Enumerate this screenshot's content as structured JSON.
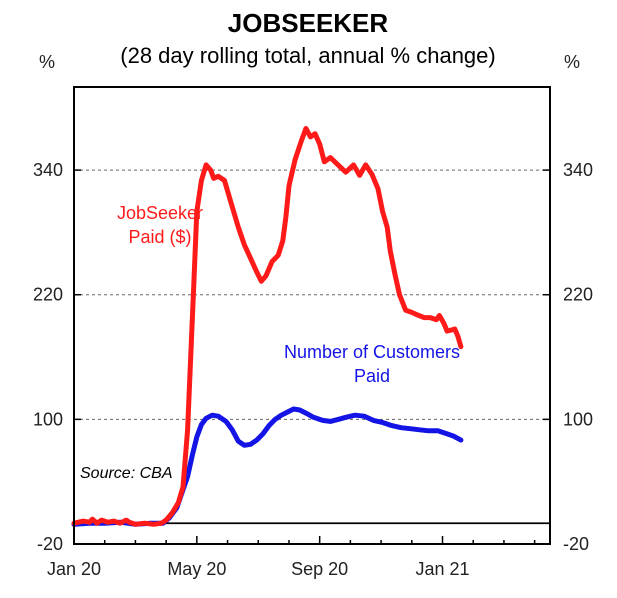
{
  "chart_data": {
    "type": "line",
    "title": "JOBSEEKER",
    "subtitle": "(28 day rolling total, annual % change)",
    "ylabel_left": "%",
    "ylabel_right": "%",
    "ylim": [
      -20,
      420
    ],
    "yticks": [
      -20,
      100,
      220,
      340
    ],
    "xlim": [
      0,
      15.5
    ],
    "xticks": [
      {
        "x": 0,
        "label": "Jan 20"
      },
      {
        "x": 4,
        "label": "May 20"
      },
      {
        "x": 8,
        "label": "Sep 20"
      },
      {
        "x": 12,
        "label": "Jan 21"
      }
    ],
    "gridlines": [
      100,
      220,
      340
    ],
    "source": "Source: CBA",
    "series": [
      {
        "name": "JobSeeker Paid ($)",
        "label_lines": [
          "JobSeeker",
          "Paid ($)"
        ],
        "color": "#ff1a1a",
        "points": [
          [
            0,
            0
          ],
          [
            0.3,
            2
          ],
          [
            0.5,
            1
          ],
          [
            0.6,
            4
          ],
          [
            0.75,
            0
          ],
          [
            0.9,
            3
          ],
          [
            1.1,
            1
          ],
          [
            1.3,
            2
          ],
          [
            1.5,
            0
          ],
          [
            1.7,
            3
          ],
          [
            1.8,
            1
          ],
          [
            2.0,
            -1
          ],
          [
            2.3,
            0
          ],
          [
            2.6,
            -1
          ],
          [
            2.85,
            0
          ],
          [
            3.0,
            3
          ],
          [
            3.2,
            10
          ],
          [
            3.4,
            20
          ],
          [
            3.55,
            35
          ],
          [
            3.7,
            90
          ],
          [
            3.8,
            160
          ],
          [
            3.9,
            230
          ],
          [
            4.0,
            300
          ],
          [
            4.15,
            330
          ],
          [
            4.3,
            345
          ],
          [
            4.45,
            340
          ],
          [
            4.55,
            332
          ],
          [
            4.7,
            334
          ],
          [
            4.9,
            330
          ],
          [
            5.1,
            310
          ],
          [
            5.35,
            285
          ],
          [
            5.55,
            268
          ],
          [
            5.75,
            255
          ],
          [
            5.95,
            242
          ],
          [
            6.1,
            233
          ],
          [
            6.25,
            238
          ],
          [
            6.45,
            252
          ],
          [
            6.65,
            258
          ],
          [
            6.8,
            272
          ],
          [
            6.9,
            295
          ],
          [
            7.0,
            325
          ],
          [
            7.2,
            350
          ],
          [
            7.4,
            368
          ],
          [
            7.55,
            380
          ],
          [
            7.7,
            372
          ],
          [
            7.85,
            375
          ],
          [
            8.0,
            365
          ],
          [
            8.15,
            348
          ],
          [
            8.35,
            352
          ],
          [
            8.6,
            345
          ],
          [
            8.85,
            338
          ],
          [
            9.1,
            345
          ],
          [
            9.3,
            335
          ],
          [
            9.5,
            345
          ],
          [
            9.7,
            336
          ],
          [
            9.9,
            322
          ],
          [
            10.05,
            300
          ],
          [
            10.2,
            285
          ],
          [
            10.3,
            262
          ],
          [
            10.45,
            240
          ],
          [
            10.6,
            220
          ],
          [
            10.8,
            205
          ],
          [
            11.0,
            203
          ],
          [
            11.15,
            201
          ],
          [
            11.4,
            198
          ],
          [
            11.6,
            198
          ],
          [
            11.8,
            196
          ],
          [
            11.9,
            200
          ],
          [
            12.05,
            192
          ],
          [
            12.15,
            185
          ],
          [
            12.3,
            186
          ],
          [
            12.4,
            187
          ],
          [
            12.5,
            180
          ],
          [
            12.6,
            170
          ]
        ]
      },
      {
        "name": "Number of Customers Paid",
        "label_lines": [
          "Number of Customers",
          "Paid"
        ],
        "color": "#1414e6",
        "points": [
          [
            0,
            -1
          ],
          [
            0.5,
            0
          ],
          [
            1.0,
            0
          ],
          [
            1.5,
            1
          ],
          [
            2.0,
            -1
          ],
          [
            2.5,
            0
          ],
          [
            2.9,
            0
          ],
          [
            3.1,
            5
          ],
          [
            3.35,
            15
          ],
          [
            3.5,
            28
          ],
          [
            3.7,
            45
          ],
          [
            3.85,
            65
          ],
          [
            4.0,
            83
          ],
          [
            4.15,
            95
          ],
          [
            4.3,
            101
          ],
          [
            4.5,
            104
          ],
          [
            4.7,
            103
          ],
          [
            4.95,
            98
          ],
          [
            5.15,
            90
          ],
          [
            5.35,
            79
          ],
          [
            5.55,
            75
          ],
          [
            5.75,
            76
          ],
          [
            5.95,
            80
          ],
          [
            6.15,
            86
          ],
          [
            6.35,
            94
          ],
          [
            6.55,
            100
          ],
          [
            6.75,
            104
          ],
          [
            6.95,
            107
          ],
          [
            7.15,
            110
          ],
          [
            7.35,
            109
          ],
          [
            7.55,
            106
          ],
          [
            7.8,
            102
          ],
          [
            8.1,
            99
          ],
          [
            8.35,
            98
          ],
          [
            8.6,
            100
          ],
          [
            8.85,
            102
          ],
          [
            9.15,
            104
          ],
          [
            9.45,
            103
          ],
          [
            9.75,
            99
          ],
          [
            10.05,
            97
          ],
          [
            10.35,
            94
          ],
          [
            10.65,
            92
          ],
          [
            10.95,
            91
          ],
          [
            11.25,
            90
          ],
          [
            11.55,
            89
          ],
          [
            11.85,
            89
          ],
          [
            12.15,
            86
          ],
          [
            12.35,
            84
          ],
          [
            12.6,
            80
          ]
        ]
      }
    ]
  }
}
